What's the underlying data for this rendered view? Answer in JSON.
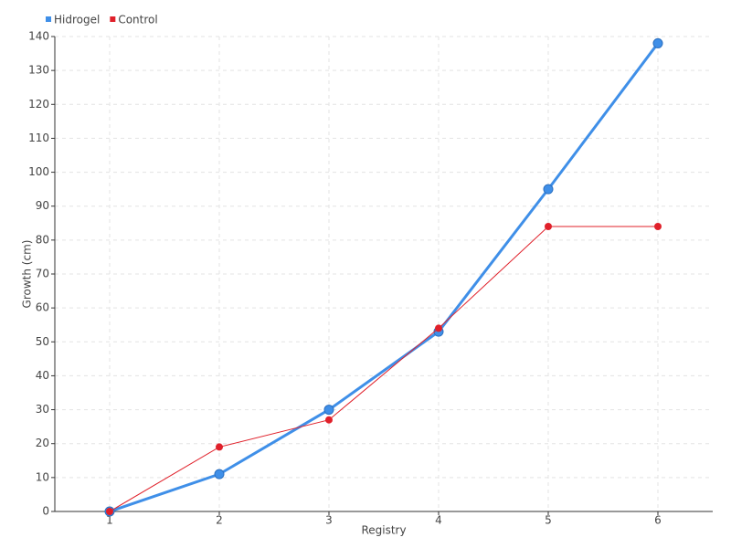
{
  "chart_data": {
    "type": "line",
    "x_label": "Registry",
    "y_label": "Growth (cm)",
    "x": [
      1,
      2,
      3,
      4,
      5,
      6
    ],
    "xlim": [
      0.5,
      6.5
    ],
    "xticks": [
      1,
      2,
      3,
      4,
      5,
      6
    ],
    "ylim": [
      0,
      140
    ],
    "yticks": [
      0,
      10,
      20,
      30,
      40,
      50,
      60,
      70,
      80,
      90,
      100,
      110,
      120,
      130,
      140
    ],
    "grid": true,
    "legend": "top-left",
    "series": [
      {
        "name": "Hidrogel",
        "color": "#3f8fe8",
        "values": [
          0,
          11,
          30,
          53,
          95,
          138
        ]
      },
      {
        "name": "Control",
        "color": "#e0202a",
        "values": [
          0,
          19,
          27,
          54,
          84,
          84
        ]
      }
    ]
  }
}
